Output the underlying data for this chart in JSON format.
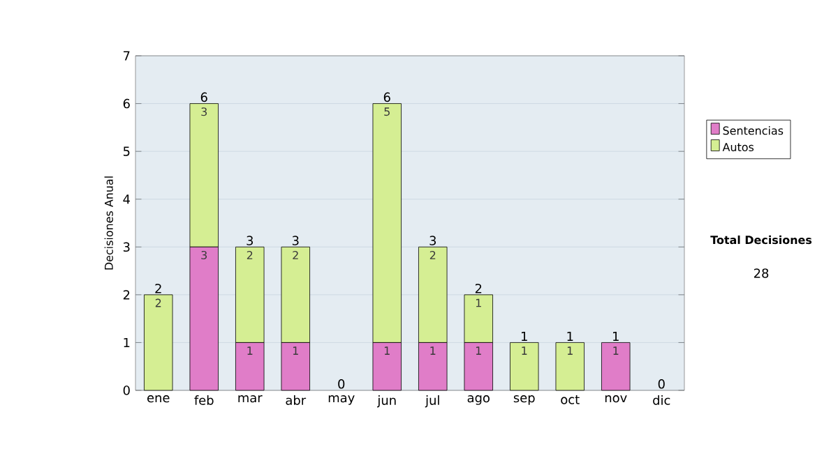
{
  "chart_data": {
    "type": "bar",
    "stacked": true,
    "ylabel": "Decisiones Anual",
    "categories": [
      "ene",
      "feb",
      "mar",
      "abr",
      "may",
      "jun",
      "jul",
      "ago",
      "sep",
      "oct",
      "nov",
      "dic"
    ],
    "series": [
      {
        "name": "Sentencias",
        "color": "#e07dc8",
        "values": [
          0,
          3,
          1,
          1,
          0,
          1,
          1,
          1,
          0,
          0,
          1,
          0
        ],
        "value_labels": [
          null,
          "3",
          "1",
          "1",
          null,
          "1",
          "1",
          "1",
          null,
          null,
          "1",
          null
        ]
      },
      {
        "name": "Autos",
        "color": "#d5ee93",
        "values": [
          2,
          3,
          2,
          2,
          0,
          5,
          2,
          1,
          1,
          1,
          0,
          0
        ],
        "value_labels": [
          "2",
          "3",
          "2",
          "2",
          null,
          "5",
          "2",
          "1",
          "1",
          "1",
          null,
          null
        ]
      }
    ],
    "totals": [
      "2",
      "6",
      "3",
      "3",
      "0",
      "6",
      "3",
      "2",
      "1",
      "1",
      "1",
      "0"
    ],
    "ylim": [
      0,
      7
    ],
    "yticks": [
      0,
      1,
      2,
      3,
      4,
      5,
      6,
      7
    ],
    "grid": "y",
    "legend": "right",
    "annotations": [
      "Total Decisiones",
      "28"
    ]
  }
}
